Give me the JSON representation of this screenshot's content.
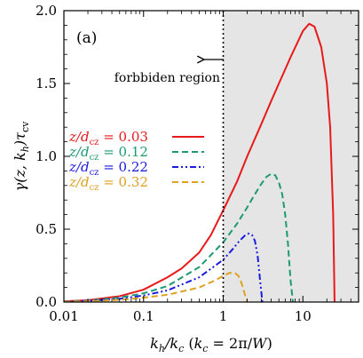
{
  "chart_data": {
    "type": "line",
    "panel_label": "(a)",
    "xlabel": "k_h/k_c (k_c = 2π/W)",
    "ylabel": "γ(z, k_h)τ_cv",
    "xscale": "log",
    "xlim": [
      0.01,
      50
    ],
    "ylim": [
      0,
      2.0
    ],
    "x_ticks": [
      0.01,
      0.1,
      1,
      10
    ],
    "x_tick_labels": [
      "0.01",
      "0.1",
      "1",
      "10"
    ],
    "y_ticks": [
      0,
      0.5,
      1.0,
      1.5,
      2.0
    ],
    "y_tick_labels": [
      "0.0",
      "0.5",
      "1.0",
      "1.5",
      "2.0"
    ],
    "grid": false,
    "legend_position": "middle-left",
    "forbidden_region": {
      "x_from": 1,
      "x_to": 50,
      "label": "forbbiden region",
      "color": "#e5e5e5"
    },
    "series": [
      {
        "name": "z/d_cz = 0.03",
        "color": "#e8191a",
        "dash": "solid",
        "x": [
          0.01,
          0.02,
          0.05,
          0.1,
          0.2,
          0.3,
          0.5,
          0.7,
          1,
          1.5,
          2,
          3,
          4,
          5,
          7,
          10,
          12,
          14,
          17,
          20,
          22,
          24,
          25
        ],
        "y": [
          0.005,
          0.012,
          0.04,
          0.085,
          0.17,
          0.23,
          0.34,
          0.46,
          0.63,
          0.83,
          1.0,
          1.22,
          1.38,
          1.5,
          1.68,
          1.86,
          1.91,
          1.89,
          1.75,
          1.5,
          1.2,
          0.6,
          0.0
        ]
      },
      {
        "name": "z/d_cz = 0.12",
        "color": "#1a9a72",
        "dash": "dashed",
        "x": [
          0.01,
          0.02,
          0.05,
          0.1,
          0.2,
          0.5,
          1,
          1.5,
          2,
          2.5,
          3,
          3.5,
          4,
          4.5,
          5,
          5.5,
          6,
          6.5,
          7,
          7.5
        ],
        "y": [
          0.004,
          0.01,
          0.03,
          0.06,
          0.11,
          0.24,
          0.41,
          0.54,
          0.65,
          0.74,
          0.81,
          0.86,
          0.88,
          0.87,
          0.82,
          0.74,
          0.6,
          0.4,
          0.15,
          0.0
        ]
      },
      {
        "name": "z/d_cz = 0.22",
        "color": "#1a1ae0",
        "dash": "dash-dot-dot",
        "x": [
          0.01,
          0.02,
          0.05,
          0.1,
          0.2,
          0.5,
          1,
          1.3,
          1.6,
          1.9,
          2.1,
          2.3,
          2.5,
          2.7,
          2.9,
          3.1
        ],
        "y": [
          0.003,
          0.008,
          0.022,
          0.045,
          0.08,
          0.17,
          0.29,
          0.36,
          0.42,
          0.46,
          0.47,
          0.46,
          0.42,
          0.32,
          0.15,
          0.0
        ]
      },
      {
        "name": "z/d_cz = 0.32",
        "color": "#e0a020",
        "dash": "dashed",
        "x": [
          0.01,
          0.02,
          0.05,
          0.1,
          0.2,
          0.5,
          0.8,
          1,
          1.2,
          1.4,
          1.55,
          1.7,
          1.85,
          2.0
        ],
        "y": [
          0.002,
          0.005,
          0.015,
          0.03,
          0.05,
          0.1,
          0.15,
          0.18,
          0.2,
          0.2,
          0.18,
          0.13,
          0.06,
          0.0
        ]
      }
    ]
  }
}
